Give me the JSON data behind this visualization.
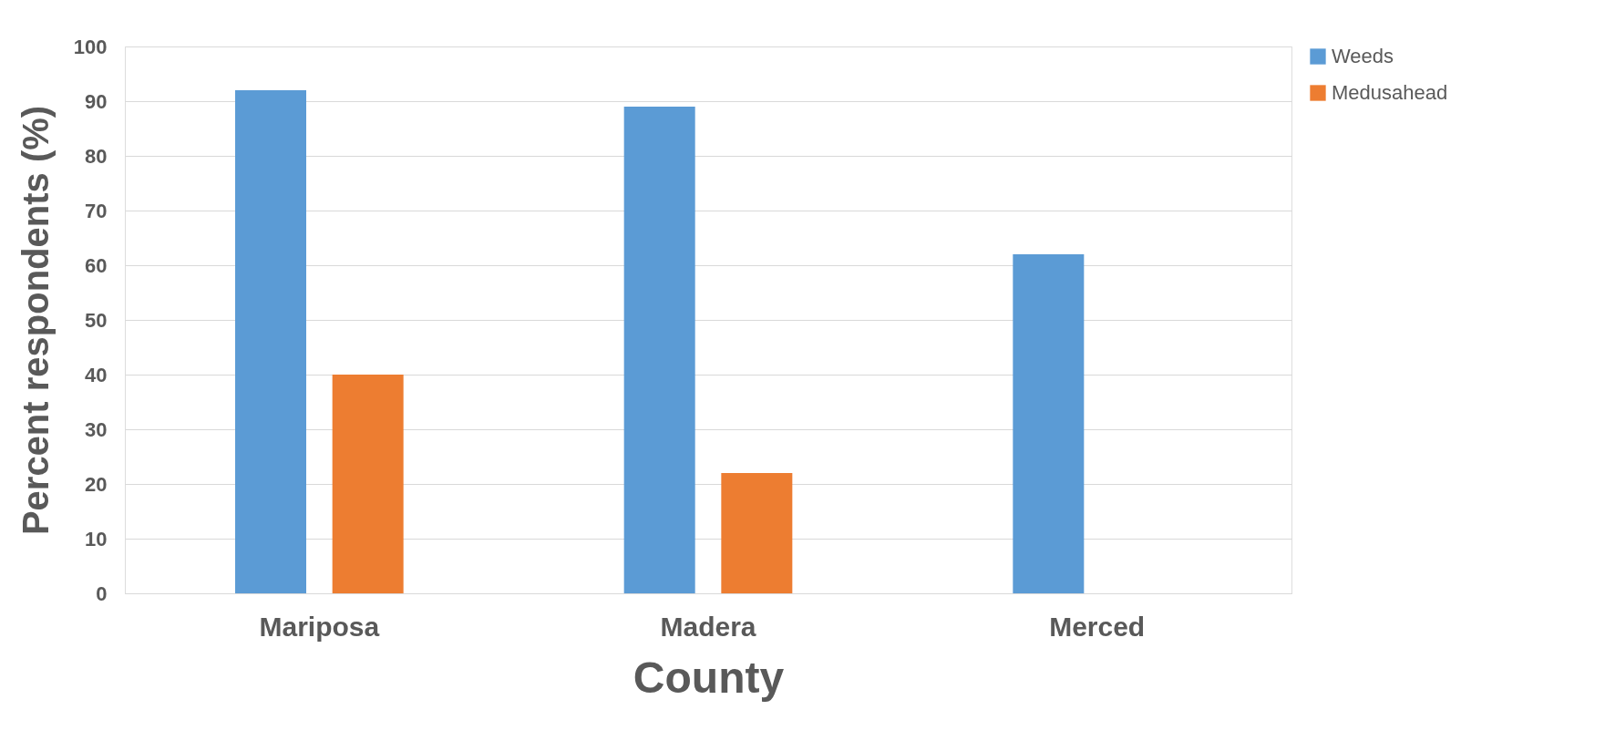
{
  "chart_data": {
    "type": "bar",
    "xlabel": "County",
    "ylabel": "Percent respondents (%)",
    "categories": [
      "Mariposa",
      "Madera",
      "Merced"
    ],
    "series": [
      {
        "name": "Weeds",
        "color": "#5b9bd5",
        "values": [
          92,
          89,
          62
        ]
      },
      {
        "name": "Medusahead",
        "color": "#ed7d31",
        "values": [
          40,
          22,
          0
        ]
      }
    ],
    "ylim": [
      0,
      100
    ],
    "yticks": [
      0,
      10,
      20,
      30,
      40,
      50,
      60,
      70,
      80,
      90,
      100
    ],
    "grid": "y",
    "legend": "right"
  }
}
